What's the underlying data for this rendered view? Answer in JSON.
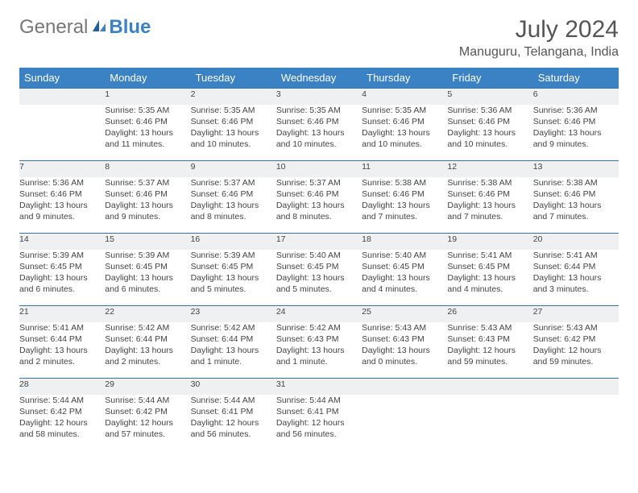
{
  "brand": {
    "part1": "General",
    "part2": "Blue"
  },
  "title": "July 2024",
  "location": "Manuguru, Telangana, India",
  "colors": {
    "header_bg": "#3b82c4",
    "header_text": "#ffffff",
    "daynum_bg": "#eef0f1",
    "row_border": "#3b72a5",
    "body_text": "#444",
    "title_text": "#555"
  },
  "day_headers": [
    "Sunday",
    "Monday",
    "Tuesday",
    "Wednesday",
    "Thursday",
    "Friday",
    "Saturday"
  ],
  "weeks": [
    {
      "nums": [
        "",
        "1",
        "2",
        "3",
        "4",
        "5",
        "6"
      ],
      "cells": [
        {
          "sr": "",
          "ss": "",
          "dl1": "",
          "dl2": ""
        },
        {
          "sr": "Sunrise: 5:35 AM",
          "ss": "Sunset: 6:46 PM",
          "dl1": "Daylight: 13 hours",
          "dl2": "and 11 minutes."
        },
        {
          "sr": "Sunrise: 5:35 AM",
          "ss": "Sunset: 6:46 PM",
          "dl1": "Daylight: 13 hours",
          "dl2": "and 10 minutes."
        },
        {
          "sr": "Sunrise: 5:35 AM",
          "ss": "Sunset: 6:46 PM",
          "dl1": "Daylight: 13 hours",
          "dl2": "and 10 minutes."
        },
        {
          "sr": "Sunrise: 5:35 AM",
          "ss": "Sunset: 6:46 PM",
          "dl1": "Daylight: 13 hours",
          "dl2": "and 10 minutes."
        },
        {
          "sr": "Sunrise: 5:36 AM",
          "ss": "Sunset: 6:46 PM",
          "dl1": "Daylight: 13 hours",
          "dl2": "and 10 minutes."
        },
        {
          "sr": "Sunrise: 5:36 AM",
          "ss": "Sunset: 6:46 PM",
          "dl1": "Daylight: 13 hours",
          "dl2": "and 9 minutes."
        }
      ]
    },
    {
      "nums": [
        "7",
        "8",
        "9",
        "10",
        "11",
        "12",
        "13"
      ],
      "cells": [
        {
          "sr": "Sunrise: 5:36 AM",
          "ss": "Sunset: 6:46 PM",
          "dl1": "Daylight: 13 hours",
          "dl2": "and 9 minutes."
        },
        {
          "sr": "Sunrise: 5:37 AM",
          "ss": "Sunset: 6:46 PM",
          "dl1": "Daylight: 13 hours",
          "dl2": "and 9 minutes."
        },
        {
          "sr": "Sunrise: 5:37 AM",
          "ss": "Sunset: 6:46 PM",
          "dl1": "Daylight: 13 hours",
          "dl2": "and 8 minutes."
        },
        {
          "sr": "Sunrise: 5:37 AM",
          "ss": "Sunset: 6:46 PM",
          "dl1": "Daylight: 13 hours",
          "dl2": "and 8 minutes."
        },
        {
          "sr": "Sunrise: 5:38 AM",
          "ss": "Sunset: 6:46 PM",
          "dl1": "Daylight: 13 hours",
          "dl2": "and 7 minutes."
        },
        {
          "sr": "Sunrise: 5:38 AM",
          "ss": "Sunset: 6:46 PM",
          "dl1": "Daylight: 13 hours",
          "dl2": "and 7 minutes."
        },
        {
          "sr": "Sunrise: 5:38 AM",
          "ss": "Sunset: 6:46 PM",
          "dl1": "Daylight: 13 hours",
          "dl2": "and 7 minutes."
        }
      ]
    },
    {
      "nums": [
        "14",
        "15",
        "16",
        "17",
        "18",
        "19",
        "20"
      ],
      "cells": [
        {
          "sr": "Sunrise: 5:39 AM",
          "ss": "Sunset: 6:45 PM",
          "dl1": "Daylight: 13 hours",
          "dl2": "and 6 minutes."
        },
        {
          "sr": "Sunrise: 5:39 AM",
          "ss": "Sunset: 6:45 PM",
          "dl1": "Daylight: 13 hours",
          "dl2": "and 6 minutes."
        },
        {
          "sr": "Sunrise: 5:39 AM",
          "ss": "Sunset: 6:45 PM",
          "dl1": "Daylight: 13 hours",
          "dl2": "and 5 minutes."
        },
        {
          "sr": "Sunrise: 5:40 AM",
          "ss": "Sunset: 6:45 PM",
          "dl1": "Daylight: 13 hours",
          "dl2": "and 5 minutes."
        },
        {
          "sr": "Sunrise: 5:40 AM",
          "ss": "Sunset: 6:45 PM",
          "dl1": "Daylight: 13 hours",
          "dl2": "and 4 minutes."
        },
        {
          "sr": "Sunrise: 5:41 AM",
          "ss": "Sunset: 6:45 PM",
          "dl1": "Daylight: 13 hours",
          "dl2": "and 4 minutes."
        },
        {
          "sr": "Sunrise: 5:41 AM",
          "ss": "Sunset: 6:44 PM",
          "dl1": "Daylight: 13 hours",
          "dl2": "and 3 minutes."
        }
      ]
    },
    {
      "nums": [
        "21",
        "22",
        "23",
        "24",
        "25",
        "26",
        "27"
      ],
      "cells": [
        {
          "sr": "Sunrise: 5:41 AM",
          "ss": "Sunset: 6:44 PM",
          "dl1": "Daylight: 13 hours",
          "dl2": "and 2 minutes."
        },
        {
          "sr": "Sunrise: 5:42 AM",
          "ss": "Sunset: 6:44 PM",
          "dl1": "Daylight: 13 hours",
          "dl2": "and 2 minutes."
        },
        {
          "sr": "Sunrise: 5:42 AM",
          "ss": "Sunset: 6:44 PM",
          "dl1": "Daylight: 13 hours",
          "dl2": "and 1 minute."
        },
        {
          "sr": "Sunrise: 5:42 AM",
          "ss": "Sunset: 6:43 PM",
          "dl1": "Daylight: 13 hours",
          "dl2": "and 1 minute."
        },
        {
          "sr": "Sunrise: 5:43 AM",
          "ss": "Sunset: 6:43 PM",
          "dl1": "Daylight: 13 hours",
          "dl2": "and 0 minutes."
        },
        {
          "sr": "Sunrise: 5:43 AM",
          "ss": "Sunset: 6:43 PM",
          "dl1": "Daylight: 12 hours",
          "dl2": "and 59 minutes."
        },
        {
          "sr": "Sunrise: 5:43 AM",
          "ss": "Sunset: 6:42 PM",
          "dl1": "Daylight: 12 hours",
          "dl2": "and 59 minutes."
        }
      ]
    },
    {
      "nums": [
        "28",
        "29",
        "30",
        "31",
        "",
        "",
        ""
      ],
      "cells": [
        {
          "sr": "Sunrise: 5:44 AM",
          "ss": "Sunset: 6:42 PM",
          "dl1": "Daylight: 12 hours",
          "dl2": "and 58 minutes."
        },
        {
          "sr": "Sunrise: 5:44 AM",
          "ss": "Sunset: 6:42 PM",
          "dl1": "Daylight: 12 hours",
          "dl2": "and 57 minutes."
        },
        {
          "sr": "Sunrise: 5:44 AM",
          "ss": "Sunset: 6:41 PM",
          "dl1": "Daylight: 12 hours",
          "dl2": "and 56 minutes."
        },
        {
          "sr": "Sunrise: 5:44 AM",
          "ss": "Sunset: 6:41 PM",
          "dl1": "Daylight: 12 hours",
          "dl2": "and 56 minutes."
        },
        {
          "sr": "",
          "ss": "",
          "dl1": "",
          "dl2": ""
        },
        {
          "sr": "",
          "ss": "",
          "dl1": "",
          "dl2": ""
        },
        {
          "sr": "",
          "ss": "",
          "dl1": "",
          "dl2": ""
        }
      ]
    }
  ]
}
